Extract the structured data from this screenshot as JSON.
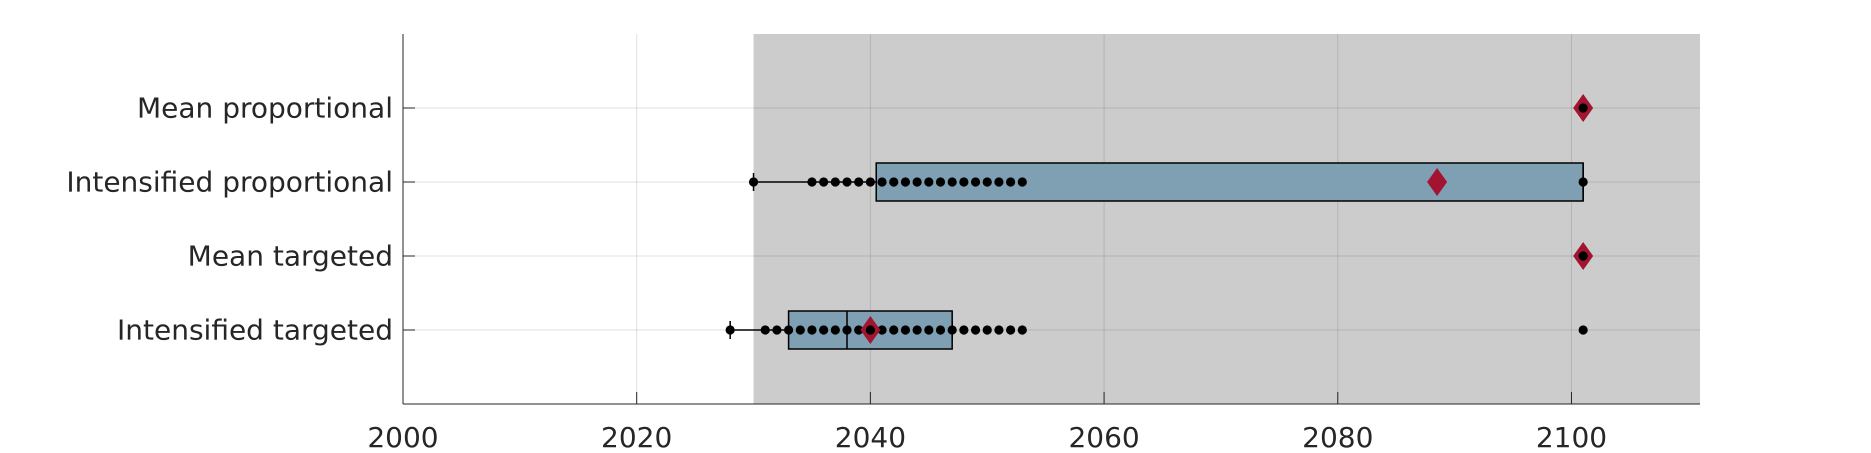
{
  "chart_data": {
    "type": "boxplot",
    "orientation": "horizontal",
    "title": "",
    "xlabel": "",
    "ylabel": "",
    "xlim": [
      2000,
      2111
    ],
    "xticks": [
      2000,
      2020,
      2040,
      2060,
      2080,
      2100
    ],
    "grid": true,
    "shaded_region": {
      "from": 2030,
      "to": 2111,
      "color": "#cccccc"
    },
    "categories": [
      "Mean proportional",
      "Intensified proportional",
      "Mean targeted",
      "Intensified targeted"
    ],
    "boxes": [
      {
        "category": "Mean proportional",
        "whisker_low": 2101,
        "q1": 2101,
        "median": 2101,
        "q3": 2101,
        "whisker_high": 2101,
        "mean": 2101,
        "points": [
          2101
        ]
      },
      {
        "category": "Intensified proportional",
        "whisker_low": 2030,
        "q1": 2040.5,
        "median": 2101,
        "q3": 2101,
        "whisker_high": 2101,
        "mean": 2088.5,
        "points": [
          2030,
          2035,
          2036,
          2037,
          2038,
          2039,
          2040,
          2041,
          2042,
          2043,
          2044,
          2045,
          2046,
          2047,
          2048,
          2049,
          2050,
          2051,
          2052,
          2053,
          2101
        ]
      },
      {
        "category": "Mean targeted",
        "whisker_low": 2101,
        "q1": 2101,
        "median": 2101,
        "q3": 2101,
        "whisker_high": 2101,
        "mean": 2101,
        "points": [
          2101
        ]
      },
      {
        "category": "Intensified targeted",
        "whisker_low": 2028,
        "q1": 2033,
        "median": 2038,
        "q3": 2047,
        "whisker_high": 2047,
        "mean": 2040,
        "points": [
          2028,
          2031,
          2032,
          2033,
          2034,
          2035,
          2036,
          2037,
          2038,
          2039,
          2040,
          2041,
          2042,
          2043,
          2044,
          2045,
          2046,
          2047,
          2048,
          2049,
          2050,
          2051,
          2052,
          2053,
          2101
        ]
      }
    ],
    "colors": {
      "box_fill": "#7f9fb3",
      "box_edge": "#000000",
      "mean_marker": "#a2142f",
      "points": "#000000",
      "grid": "#d9d9d9",
      "axis": "#262626"
    }
  }
}
